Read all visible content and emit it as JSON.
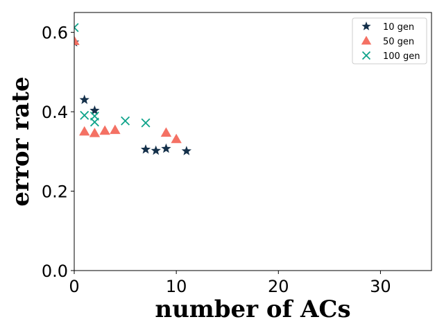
{
  "chart_data": {
    "type": "scatter",
    "xlabel": "number of ACs",
    "ylabel": "error rate",
    "xlim": [
      0,
      35
    ],
    "ylim": [
      0,
      0.65
    ],
    "x_ticks": [
      0,
      10,
      20,
      30
    ],
    "x_tick_labels": [
      "0",
      "10",
      "20",
      "30"
    ],
    "y_ticks": [
      0.0,
      0.2,
      0.4,
      0.6
    ],
    "y_tick_labels": [
      "0.0",
      "0.2",
      "0.4",
      "0.6"
    ],
    "grid": false,
    "legend_position": "top-right",
    "series": [
      {
        "name": "10 gen",
        "marker": "star",
        "color": "#14304a",
        "x": [
          0,
          1,
          2,
          7,
          8,
          9,
          11
        ],
        "y": [
          0.575,
          0.43,
          0.403,
          0.305,
          0.302,
          0.307,
          0.301
        ]
      },
      {
        "name": "50 gen",
        "marker": "triangle",
        "color": "#f47164",
        "x": [
          0,
          1,
          2,
          3,
          4,
          9,
          10
        ],
        "y": [
          0.578,
          0.35,
          0.346,
          0.352,
          0.354,
          0.347,
          0.331
        ]
      },
      {
        "name": "100 gen",
        "marker": "x",
        "color": "#0ea38a",
        "x": [
          0,
          1,
          2,
          2,
          5,
          7
        ],
        "y": [
          0.612,
          0.391,
          0.389,
          0.374,
          0.377,
          0.372
        ]
      }
    ]
  }
}
